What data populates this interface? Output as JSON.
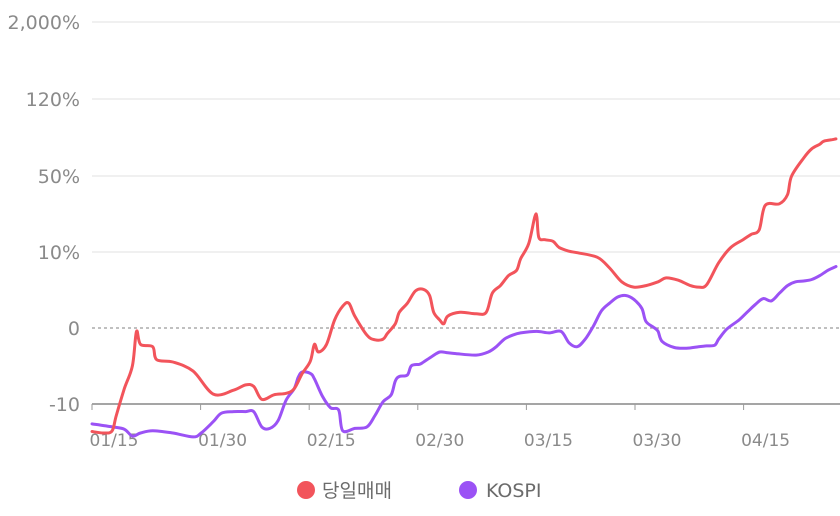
{
  "chart_data": {
    "type": "line",
    "y_scale": "piecewise (equal spacing per tick)",
    "y_ticks": [
      "-10",
      "0",
      "10%",
      "50%",
      "120%",
      "2,000%"
    ],
    "x_ticks": [
      "01/15",
      "01/30",
      "02/15",
      "02/30",
      "03/15",
      "03/30",
      "04/15"
    ],
    "grid": "horizontal",
    "legend_placement": "bottom",
    "series": [
      {
        "name": "당일매매",
        "color": "#f2545b",
        "points": [
          [
            0.0,
            -0.36
          ],
          [
            0.03,
            -0.38
          ],
          [
            0.05,
            -0.35
          ],
          [
            0.06,
            -0.15
          ],
          [
            0.08,
            0.2
          ],
          [
            0.1,
            0.5
          ],
          [
            0.11,
            0.95
          ],
          [
            0.12,
            0.78
          ],
          [
            0.15,
            0.75
          ],
          [
            0.16,
            0.58
          ],
          [
            0.2,
            0.55
          ],
          [
            0.25,
            0.43
          ],
          [
            0.3,
            0.13
          ],
          [
            0.35,
            0.18
          ],
          [
            0.38,
            0.25
          ],
          [
            0.4,
            0.23
          ],
          [
            0.42,
            0.06
          ],
          [
            0.45,
            0.12
          ],
          [
            0.48,
            0.14
          ],
          [
            0.5,
            0.2
          ],
          [
            0.52,
            0.4
          ],
          [
            0.54,
            0.56
          ],
          [
            0.55,
            0.78
          ],
          [
            0.56,
            0.68
          ],
          [
            0.58,
            0.78
          ],
          [
            0.6,
            1.1
          ],
          [
            0.62,
            1.28
          ],
          [
            0.635,
            1.32
          ],
          [
            0.65,
            1.15
          ],
          [
            0.68,
            0.9
          ],
          [
            0.7,
            0.84
          ],
          [
            0.72,
            0.85
          ],
          [
            0.73,
            0.92
          ],
          [
            0.75,
            1.05
          ],
          [
            0.76,
            1.2
          ],
          [
            0.78,
            1.32
          ],
          [
            0.8,
            1.48
          ],
          [
            0.82,
            1.5
          ],
          [
            0.835,
            1.42
          ],
          [
            0.845,
            1.2
          ],
          [
            0.86,
            1.1
          ],
          [
            0.87,
            1.05
          ],
          [
            0.88,
            1.15
          ],
          [
            0.91,
            1.2
          ],
          [
            0.95,
            1.18
          ],
          [
            0.975,
            1.2
          ],
          [
            0.99,
            1.45
          ],
          [
            1.01,
            1.55
          ],
          [
            1.03,
            1.68
          ],
          [
            1.05,
            1.75
          ],
          [
            1.06,
            1.9
          ],
          [
            1.08,
            2.1
          ],
          [
            1.095,
            2.45
          ],
          [
            1.1,
            2.45
          ],
          [
            1.105,
            2.18
          ],
          [
            1.12,
            2.15
          ],
          [
            1.14,
            2.13
          ],
          [
            1.155,
            2.05
          ],
          [
            1.18,
            2.0
          ],
          [
            1.2,
            1.98
          ],
          [
            1.25,
            1.92
          ],
          [
            1.28,
            1.78
          ],
          [
            1.31,
            1.6
          ],
          [
            1.34,
            1.53
          ],
          [
            1.37,
            1.55
          ],
          [
            1.4,
            1.6
          ],
          [
            1.42,
            1.65
          ],
          [
            1.45,
            1.62
          ],
          [
            1.48,
            1.55
          ],
          [
            1.5,
            1.53
          ],
          [
            1.52,
            1.56
          ],
          [
            1.55,
            1.85
          ],
          [
            1.58,
            2.05
          ],
          [
            1.61,
            2.15
          ],
          [
            1.63,
            2.22
          ],
          [
            1.65,
            2.28
          ],
          [
            1.665,
            2.6
          ],
          [
            1.7,
            2.62
          ],
          [
            1.72,
            2.74
          ],
          [
            1.73,
            2.98
          ],
          [
            1.76,
            3.22
          ],
          [
            1.78,
            3.34
          ],
          [
            1.8,
            3.4
          ],
          [
            1.81,
            3.44
          ],
          [
            1.83,
            3.46
          ],
          [
            1.84,
            3.47
          ]
        ]
      },
      {
        "name": "KOSPI",
        "color": "#9b52f5",
        "points": [
          [
            0.0,
            -0.26
          ],
          [
            0.05,
            -0.3
          ],
          [
            0.08,
            -0.33
          ],
          [
            0.1,
            -0.42
          ],
          [
            0.12,
            -0.38
          ],
          [
            0.15,
            -0.35
          ],
          [
            0.2,
            -0.38
          ],
          [
            0.25,
            -0.43
          ],
          [
            0.27,
            -0.38
          ],
          [
            0.3,
            -0.23
          ],
          [
            0.32,
            -0.12
          ],
          [
            0.35,
            -0.1
          ],
          [
            0.38,
            -0.1
          ],
          [
            0.4,
            -0.1
          ],
          [
            0.42,
            -0.3
          ],
          [
            0.44,
            -0.32
          ],
          [
            0.46,
            -0.22
          ],
          [
            0.48,
            0.05
          ],
          [
            0.5,
            0.2
          ],
          [
            0.51,
            0.35
          ],
          [
            0.52,
            0.42
          ],
          [
            0.54,
            0.4
          ],
          [
            0.55,
            0.33
          ],
          [
            0.57,
            0.1
          ],
          [
            0.59,
            -0.05
          ],
          [
            0.61,
            -0.08
          ],
          [
            0.62,
            -0.35
          ],
          [
            0.65,
            -0.32
          ],
          [
            0.68,
            -0.3
          ],
          [
            0.7,
            -0.15
          ],
          [
            0.72,
            0.03
          ],
          [
            0.74,
            0.12
          ],
          [
            0.75,
            0.3
          ],
          [
            0.76,
            0.36
          ],
          [
            0.78,
            0.38
          ],
          [
            0.79,
            0.5
          ],
          [
            0.81,
            0.52
          ],
          [
            0.82,
            0.55
          ],
          [
            0.84,
            0.62
          ],
          [
            0.86,
            0.68
          ],
          [
            0.88,
            0.67
          ],
          [
            0.9,
            0.66
          ],
          [
            0.95,
            0.64
          ],
          [
            0.98,
            0.68
          ],
          [
            1.0,
            0.75
          ],
          [
            1.02,
            0.85
          ],
          [
            1.04,
            0.9
          ],
          [
            1.06,
            0.93
          ],
          [
            1.1,
            0.95
          ],
          [
            1.13,
            0.93
          ],
          [
            1.16,
            0.95
          ],
          [
            1.18,
            0.8
          ],
          [
            1.2,
            0.75
          ],
          [
            1.22,
            0.85
          ],
          [
            1.24,
            1.02
          ],
          [
            1.26,
            1.22
          ],
          [
            1.28,
            1.32
          ],
          [
            1.3,
            1.4
          ],
          [
            1.32,
            1.42
          ],
          [
            1.34,
            1.37
          ],
          [
            1.36,
            1.25
          ],
          [
            1.37,
            1.08
          ],
          [
            1.39,
            1.0
          ],
          [
            1.4,
            0.95
          ],
          [
            1.41,
            0.82
          ],
          [
            1.44,
            0.74
          ],
          [
            1.47,
            0.73
          ],
          [
            1.5,
            0.75
          ],
          [
            1.52,
            0.76
          ],
          [
            1.54,
            0.77
          ],
          [
            1.55,
            0.85
          ],
          [
            1.57,
            0.98
          ],
          [
            1.6,
            1.1
          ],
          [
            1.62,
            1.2
          ],
          [
            1.64,
            1.3
          ],
          [
            1.66,
            1.38
          ],
          [
            1.68,
            1.35
          ],
          [
            1.7,
            1.45
          ],
          [
            1.72,
            1.55
          ],
          [
            1.74,
            1.6
          ],
          [
            1.76,
            1.61
          ],
          [
            1.78,
            1.63
          ],
          [
            1.8,
            1.68
          ],
          [
            1.82,
            1.75
          ],
          [
            1.84,
            1.8
          ]
        ]
      }
    ]
  },
  "legend": [
    {
      "label": "당일매매",
      "color": "#f2545b"
    },
    {
      "label": "KOSPI",
      "color": "#9b52f5"
    }
  ]
}
